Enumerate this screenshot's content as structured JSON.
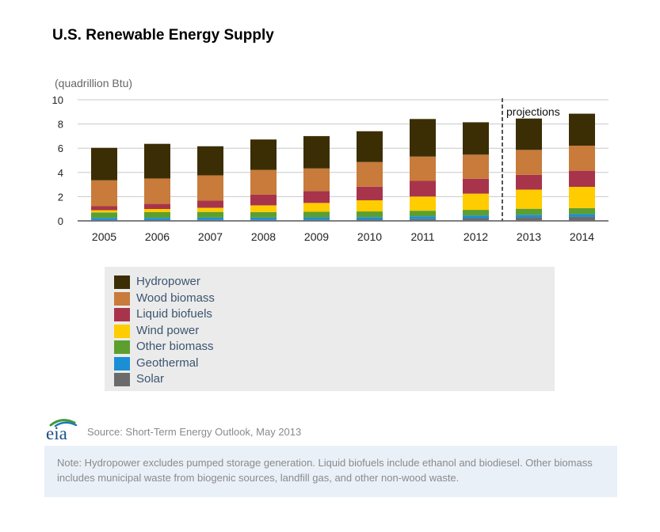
{
  "title": "U.S. Renewable Energy Supply",
  "source": "Source: Short-Term Energy Outlook, May 2013",
  "note": "Note: Hydropower excludes pumped storage generation. Liquid biofuels include ethanol and biodiesel. Other biomass includes municipal waste from biogenic sources, landfill gas, and other non-wood waste.",
  "logo_text": "eia",
  "chart_data": {
    "type": "bar",
    "stacked": true,
    "title": "U.S. Renewable Energy Supply",
    "ylabel": "(quadrillion Btu)",
    "xlabel": "",
    "ylim": [
      0,
      10
    ],
    "yticks": [
      "0",
      "2",
      "4",
      "6",
      "8",
      "10"
    ],
    "grid": true,
    "categories": [
      "2005",
      "2006",
      "2007",
      "2008",
      "2009",
      "2010",
      "2011",
      "2012",
      "2013",
      "2014"
    ],
    "projection_label": "projections",
    "projection_start": "2013",
    "legend_position": "below",
    "series": [
      {
        "name": "Solar",
        "color": "#6b6b6b",
        "values": [
          0.07,
          0.07,
          0.08,
          0.08,
          0.09,
          0.1,
          0.15,
          0.23,
          0.29,
          0.33
        ]
      },
      {
        "name": "Geothermal",
        "color": "#1a8fd6",
        "values": [
          0.18,
          0.18,
          0.19,
          0.19,
          0.2,
          0.21,
          0.22,
          0.22,
          0.22,
          0.23
        ]
      },
      {
        "name": "Other biomass",
        "color": "#5d9f2f",
        "values": [
          0.45,
          0.47,
          0.47,
          0.46,
          0.47,
          0.47,
          0.47,
          0.46,
          0.49,
          0.5
        ]
      },
      {
        "name": "Wind power",
        "color": "#ffcc00",
        "values": [
          0.18,
          0.26,
          0.34,
          0.55,
          0.72,
          0.92,
          1.17,
          1.34,
          1.58,
          1.75
        ]
      },
      {
        "name": "Liquid biofuels",
        "color": "#a8344c",
        "values": [
          0.33,
          0.42,
          0.59,
          0.88,
          0.98,
          1.12,
          1.29,
          1.23,
          1.22,
          1.33
        ]
      },
      {
        "name": "Wood biomass",
        "color": "#c87b3a",
        "values": [
          2.14,
          2.1,
          2.09,
          2.05,
          1.87,
          2.04,
          2.01,
          1.99,
          2.06,
          2.07
        ]
      },
      {
        "name": "Hydropower",
        "color": "#3b2e05",
        "values": [
          2.68,
          2.86,
          2.4,
          2.51,
          2.67,
          2.54,
          3.1,
          2.67,
          2.59,
          2.64
        ]
      }
    ]
  },
  "legend": [
    {
      "name": "Hydropower",
      "color": "#3b2e05"
    },
    {
      "name": "Wood biomass",
      "color": "#c87b3a"
    },
    {
      "name": "Liquid biofuels",
      "color": "#a8344c"
    },
    {
      "name": "Wind power",
      "color": "#ffcc00"
    },
    {
      "name": "Other biomass",
      "color": "#5d9f2f"
    },
    {
      "name": "Geothermal",
      "color": "#1a8fd6"
    },
    {
      "name": "Solar",
      "color": "#6b6b6b"
    }
  ]
}
